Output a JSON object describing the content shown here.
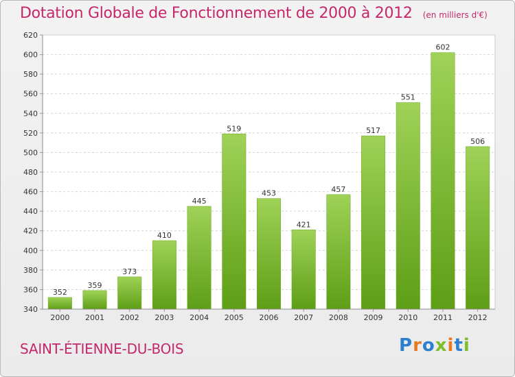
{
  "header": {
    "title": "Dotation Globale de Fonctionnement de 2000 à 2012",
    "unit": "(en milliers d'€)"
  },
  "footer": {
    "commune": "SAINT-ÉTIENNE-DU-BOIS",
    "logo_text": "Proxiti"
  },
  "colors": {
    "title": "#c4286a",
    "bar_top": "#9fd257",
    "bar_bottom": "#5e9e16",
    "grid": "#d2d2d2"
  },
  "chart_data": {
    "type": "bar",
    "title": "Dotation Globale de Fonctionnement de 2000 à 2012",
    "unit": "(en milliers d'€)",
    "xlabel": "",
    "ylabel": "",
    "categories": [
      "2000",
      "2001",
      "2002",
      "2003",
      "2004",
      "2005",
      "2006",
      "2007",
      "2008",
      "2009",
      "2010",
      "2011",
      "2012"
    ],
    "values": [
      352,
      359,
      373,
      410,
      445,
      519,
      453,
      421,
      457,
      517,
      551,
      602,
      506
    ],
    "ylim": [
      340,
      620
    ],
    "yticks": [
      340,
      360,
      380,
      400,
      420,
      440,
      460,
      480,
      500,
      520,
      540,
      560,
      580,
      600,
      620
    ],
    "grid": true,
    "legend": "none"
  }
}
